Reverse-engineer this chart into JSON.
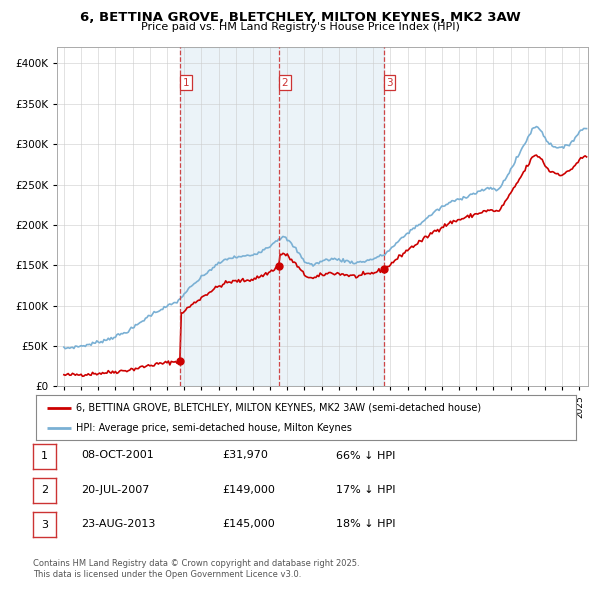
{
  "title": "6, BETTINA GROVE, BLETCHLEY, MILTON KEYNES, MK2 3AW",
  "subtitle": "Price paid vs. HM Land Registry's House Price Index (HPI)",
  "legend_line1": "6, BETTINA GROVE, BLETCHLEY, MILTON KEYNES, MK2 3AW (semi-detached house)",
  "legend_line2": "HPI: Average price, semi-detached house, Milton Keynes",
  "footer1": "Contains HM Land Registry data © Crown copyright and database right 2025.",
  "footer2": "This data is licensed under the Open Government Licence v3.0.",
  "sales": [
    {
      "date": 2001.78,
      "price": 31970,
      "label": "1"
    },
    {
      "date": 2007.54,
      "price": 149000,
      "label": "2"
    },
    {
      "date": 2013.64,
      "price": 145000,
      "label": "3"
    }
  ],
  "sale_dates_text": [
    "08-OCT-2001",
    "20-JUL-2007",
    "23-AUG-2013"
  ],
  "sale_prices_text": [
    "£31,970",
    "£149,000",
    "£145,000"
  ],
  "sale_hpi_text": [
    "66% ↓ HPI",
    "17% ↓ HPI",
    "18% ↓ HPI"
  ],
  "vline_dates": [
    2001.78,
    2007.54,
    2013.64
  ],
  "red_line_color": "#cc0000",
  "blue_line_color": "#7ab0d4",
  "vline_color": "#cc3333",
  "shade_color": "#ddeeff",
  "background_color": "#ffffff",
  "ylim": [
    0,
    420000
  ],
  "xlim_start": 1994.6,
  "xlim_end": 2025.5,
  "yticks": [
    0,
    50000,
    100000,
    150000,
    200000,
    250000,
    300000,
    350000,
    400000
  ]
}
